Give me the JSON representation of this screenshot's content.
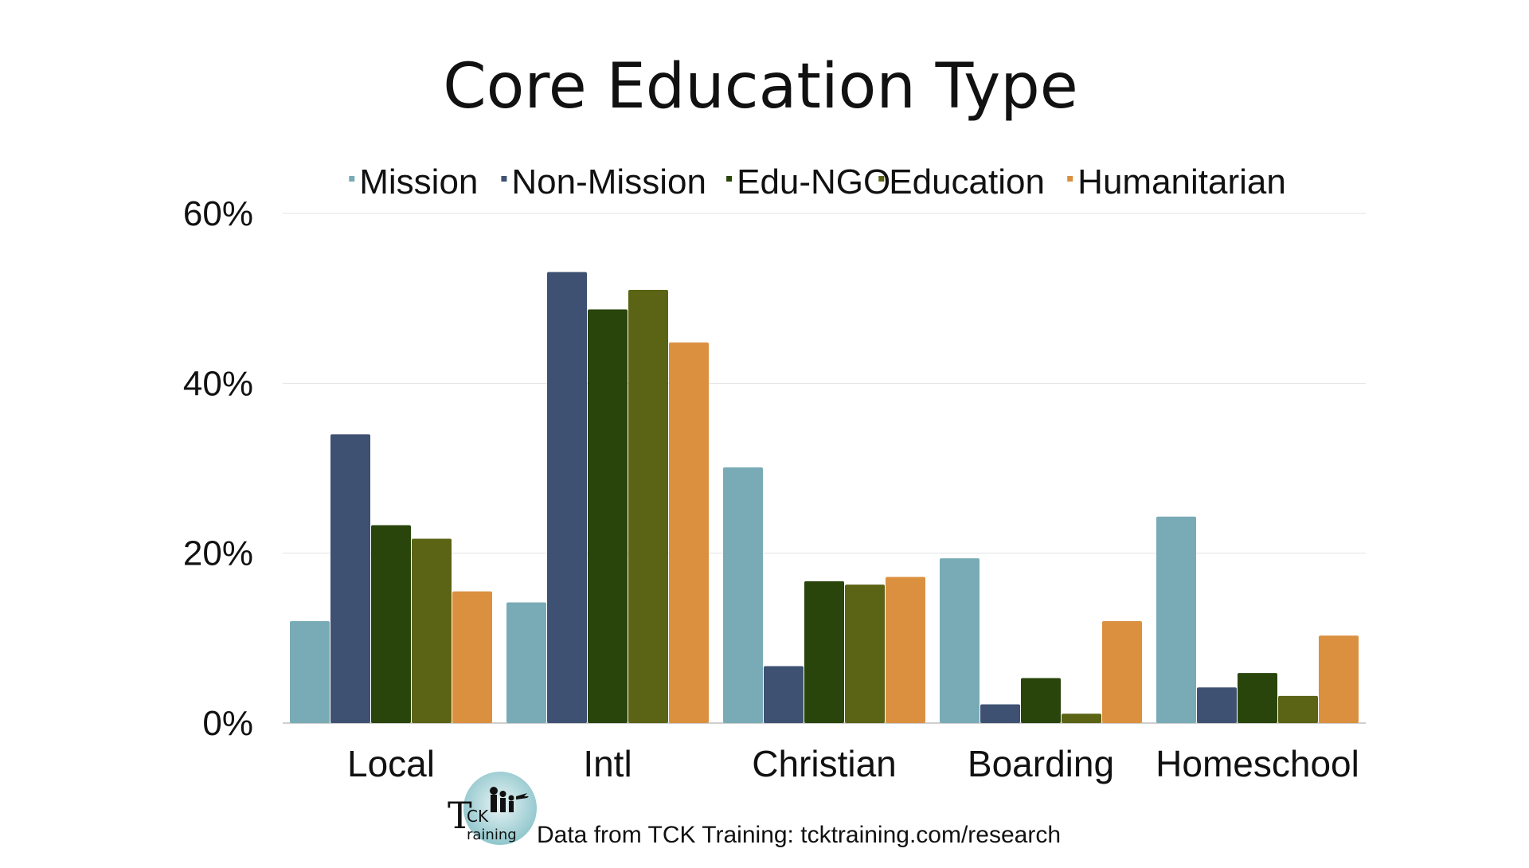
{
  "chart_data": {
    "type": "bar",
    "title": "Core Education Type",
    "categories": [
      "Local",
      "Intl",
      "Christian",
      "Boarding",
      "Homeschool"
    ],
    "series": [
      {
        "name": "Mission",
        "color": "#78abb6",
        "values": [
          12,
          14.2,
          30.1,
          19.4,
          24.3
        ]
      },
      {
        "name": "Non-Mission",
        "color": "#3e5172",
        "values": [
          34,
          53.1,
          6.7,
          2.2,
          4.2
        ]
      },
      {
        "name": "Edu-NGO",
        "color": "#29450c",
        "values": [
          23.3,
          48.7,
          16.7,
          5.3,
          5.9
        ]
      },
      {
        "name": "Education",
        "color": "#5b6314",
        "values": [
          21.7,
          51,
          16.3,
          1.1,
          3.2
        ]
      },
      {
        "name": "Humanitarian",
        "color": "#db9040",
        "values": [
          15.5,
          44.8,
          17.2,
          12,
          10.3
        ]
      }
    ],
    "yticks": [
      "0%",
      "20%",
      "40%",
      "60%"
    ],
    "ylim": [
      0,
      60
    ],
    "legend_position": "top",
    "grid": true
  },
  "footer": {
    "source": "Data from TCK Training: tcktraining.com/research",
    "logo_text_1": "CK",
    "logo_text_2": "raining",
    "logo_letter": "T"
  }
}
